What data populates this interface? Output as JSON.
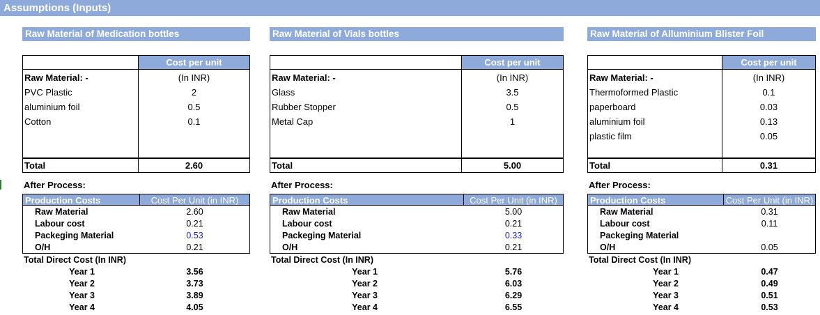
{
  "page": {
    "title": "Assumptions (Inputs)"
  },
  "sections": [
    {
      "heading": "Raw Material of Medication bottles",
      "col_header_1": "Cost per unit",
      "col_header_2": "(In INR)",
      "raw_label": "Raw Material: -",
      "items": [
        {
          "name": "PVC Plastic",
          "value": "2"
        },
        {
          "name": "aluminium foil",
          "value": "0.5"
        },
        {
          "name": "Cotton",
          "value": "0.1"
        }
      ],
      "total_label": "Total",
      "total_value": "2.60",
      "after_label": "After Process:",
      "pc_head_left": "Production Costs",
      "pc_head_right": "Cost Per Unit (in INR)",
      "pc_items": [
        {
          "name": "Raw Material",
          "value": "2.60",
          "blue": false
        },
        {
          "name": "Labour cost",
          "value": "0.21",
          "blue": false
        },
        {
          "name": "Packeging Material",
          "value": "0.53",
          "blue": true
        },
        {
          "name": "O/H",
          "value": "0.21",
          "blue": false
        }
      ],
      "tdc_label": "Total Direct Cost (In INR)",
      "years": [
        {
          "label": "Year 1",
          "value": "3.56"
        },
        {
          "label": "Year 2",
          "value": "3.73"
        },
        {
          "label": "Year 3",
          "value": "3.89"
        },
        {
          "label": "Year 4",
          "value": "4.05"
        }
      ]
    },
    {
      "heading": "Raw Material of Vials bottles",
      "col_header_1": "Cost per unit",
      "col_header_2": "(In INR)",
      "raw_label": "Raw Material: -",
      "items": [
        {
          "name": "Glass",
          "value": "3.5"
        },
        {
          "name": "Rubber Stopper",
          "value": "0.5"
        },
        {
          "name": "Metal Cap",
          "value": "1"
        }
      ],
      "total_label": "Total",
      "total_value": "5.00",
      "after_label": "After Process:",
      "pc_head_left": "Production Costs",
      "pc_head_right": "Cost Per Unit (in INR)",
      "pc_items": [
        {
          "name": "Raw Material",
          "value": "5.00",
          "blue": false
        },
        {
          "name": "Labour cost",
          "value": "0.21",
          "blue": false
        },
        {
          "name": "Packeging Material",
          "value": "0.33",
          "blue": true
        },
        {
          "name": "O/H",
          "value": "0.21",
          "blue": false
        }
      ],
      "tdc_label": "Total Direct Cost (In INR)",
      "years": [
        {
          "label": "Year 1",
          "value": "5.76"
        },
        {
          "label": "Year 2",
          "value": "6.03"
        },
        {
          "label": "Year 3",
          "value": "6.29"
        },
        {
          "label": "Year 4",
          "value": "6.55"
        }
      ]
    },
    {
      "heading": "Raw Material of Alluminium Blister Foil",
      "col_header_1": "Cost per unit",
      "col_header_2": "(In INR)",
      "raw_label": "Raw Material: -",
      "items": [
        {
          "name": "Thermoformed Plastic",
          "value": "0.1"
        },
        {
          "name": "paperboard",
          "value": "0.03"
        },
        {
          "name": "aluminium foil",
          "value": "0.13"
        },
        {
          "name": "plastic film",
          "value": "0.05"
        }
      ],
      "total_label": "Total",
      "total_value": "0.31",
      "after_label": "After Process:",
      "pc_head_left": "Production Costs",
      "pc_head_right": "Cost Per Unit (in INR)",
      "pc_items": [
        {
          "name": "Raw Material",
          "value": "0.31",
          "blue": false
        },
        {
          "name": "Labour cost",
          "value": "0.11",
          "blue": false
        },
        {
          "name": "Packeging Material",
          "value": "",
          "blue": false
        },
        {
          "name": "O/H",
          "value": "0.05",
          "blue": false
        }
      ],
      "tdc_label": "Total Direct Cost (In INR)",
      "years": [
        {
          "label": "Year 1",
          "value": "0.47"
        },
        {
          "label": "Year 2",
          "value": "0.49"
        },
        {
          "label": "Year 3",
          "value": "0.51"
        },
        {
          "label": "Year 4",
          "value": "0.53"
        }
      ]
    }
  ]
}
